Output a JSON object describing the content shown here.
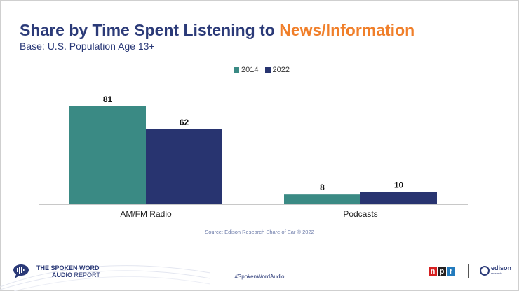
{
  "header": {
    "title_main": "Share by Time Spent Listening to ",
    "title_highlight": "News/Information",
    "subtitle": "Base: U.S. Population Age 13+"
  },
  "colors": {
    "title": "#2b3a78",
    "highlight": "#f07f2a",
    "series_2014": "#3a8a84",
    "series_2022": "#283470"
  },
  "chart_data": {
    "type": "bar",
    "categories": [
      "AM/FM Radio",
      "Podcasts"
    ],
    "series": [
      {
        "name": "2014",
        "values": [
          81,
          8
        ]
      },
      {
        "name": "2022",
        "values": [
          62,
          10
        ]
      }
    ],
    "ylim": [
      0,
      100
    ],
    "grid": false,
    "legend_position": "top-center",
    "data_labels": true
  },
  "source": "Source: Edison Research Share of Ear ® 2022",
  "footer": {
    "hashtag": "#SpokenWordAudio",
    "brand_line1": "THE SPOKEN WORD",
    "brand_line2_bold": "AUDIO",
    "brand_line2_light": " REPORT",
    "npr_letters": [
      "n",
      "p",
      "r"
    ],
    "npr_colors": [
      "#d62021",
      "#231f20",
      "#237bbd"
    ],
    "edison_name": "edison",
    "edison_sub": "research"
  }
}
